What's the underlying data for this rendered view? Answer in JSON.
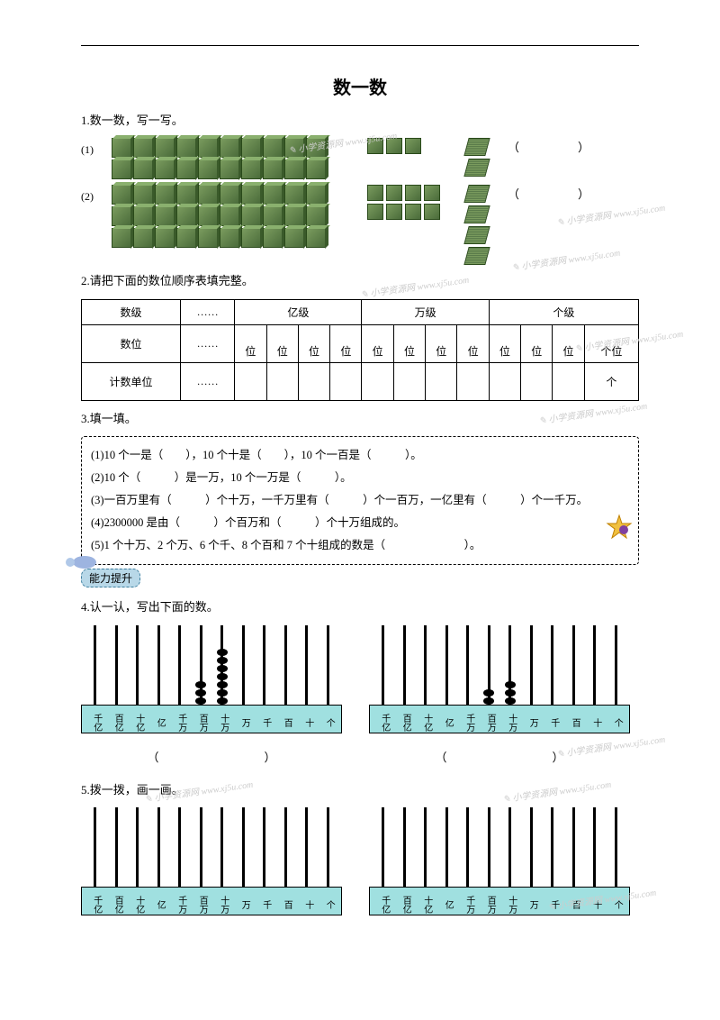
{
  "title": "数一数",
  "q1": {
    "heading": "1.数一数，写一写。",
    "rows": [
      {
        "label": "(1)",
        "big_cubes": 20,
        "small_cubes": 3,
        "flats": 2
      },
      {
        "label": "(2)",
        "big_cubes": 30,
        "small_cubes": 8,
        "flats": 4
      }
    ],
    "paren": "（　　　　　）"
  },
  "q2": {
    "heading": "2.请把下面的数位顺序表填完整。",
    "row1": [
      "数级",
      "……",
      "亿级",
      "万级",
      "个级"
    ],
    "row2_label": "数位",
    "row2_dots": "……",
    "row2_cells": [
      "位",
      "位",
      "位",
      "位",
      "位",
      "位",
      "位",
      "位",
      "位",
      "位",
      "位",
      "个位"
    ],
    "row3_label": "计数单位",
    "row3_dots": "……",
    "row3_last": "个"
  },
  "q3": {
    "heading": "3.填一填。",
    "lines": [
      "(1)10 个一是（　　），10 个十是（　　），10 个一百是（　　　）。",
      "(2)10 个（　　　）是一万，10 个一万是（　　　）。",
      "(3)一百万里有（　　　）个十万，一千万里有（　　　）个一百万，一亿里有（　　　）个一千万。",
      "(4)2300000 是由（　　　）个百万和（　　　）个十万组成的。",
      "(5)1 个十万、2 个万、6 个千、8 个百和 7 个十组成的数是（　　　　　　　）。"
    ]
  },
  "badge": "能力提升",
  "q4": {
    "heading": "4.认一认，写出下面的数。",
    "abacus": [
      {
        "beads": {
          "5": 3,
          "6": 7
        }
      },
      {
        "beads": {
          "5": 2,
          "6": 3
        }
      }
    ],
    "labels": [
      "千亿",
      "百亿",
      "十亿",
      "亿",
      "千万",
      "百万",
      "十万",
      "万",
      "千",
      "百",
      "十",
      "个"
    ],
    "answer": "（　　　　　　　　　）"
  },
  "q5": {
    "heading": "5.拨一拨，画一画。",
    "abacus": [
      {
        "beads": {}
      },
      {
        "beads": {}
      }
    ],
    "labels": [
      "千亿",
      "百亿",
      "十亿",
      "亿",
      "千万",
      "百万",
      "十万",
      "万",
      "千",
      "百",
      "十",
      "个"
    ]
  },
  "watermark": "小学资源网 www.xj5u.com",
  "colors": {
    "cube_light": "#7a9b5e",
    "cube_dark": "#4a6b3a",
    "abacus_base": "#a0e0e0",
    "badge_bg": "#b8d8e8"
  }
}
